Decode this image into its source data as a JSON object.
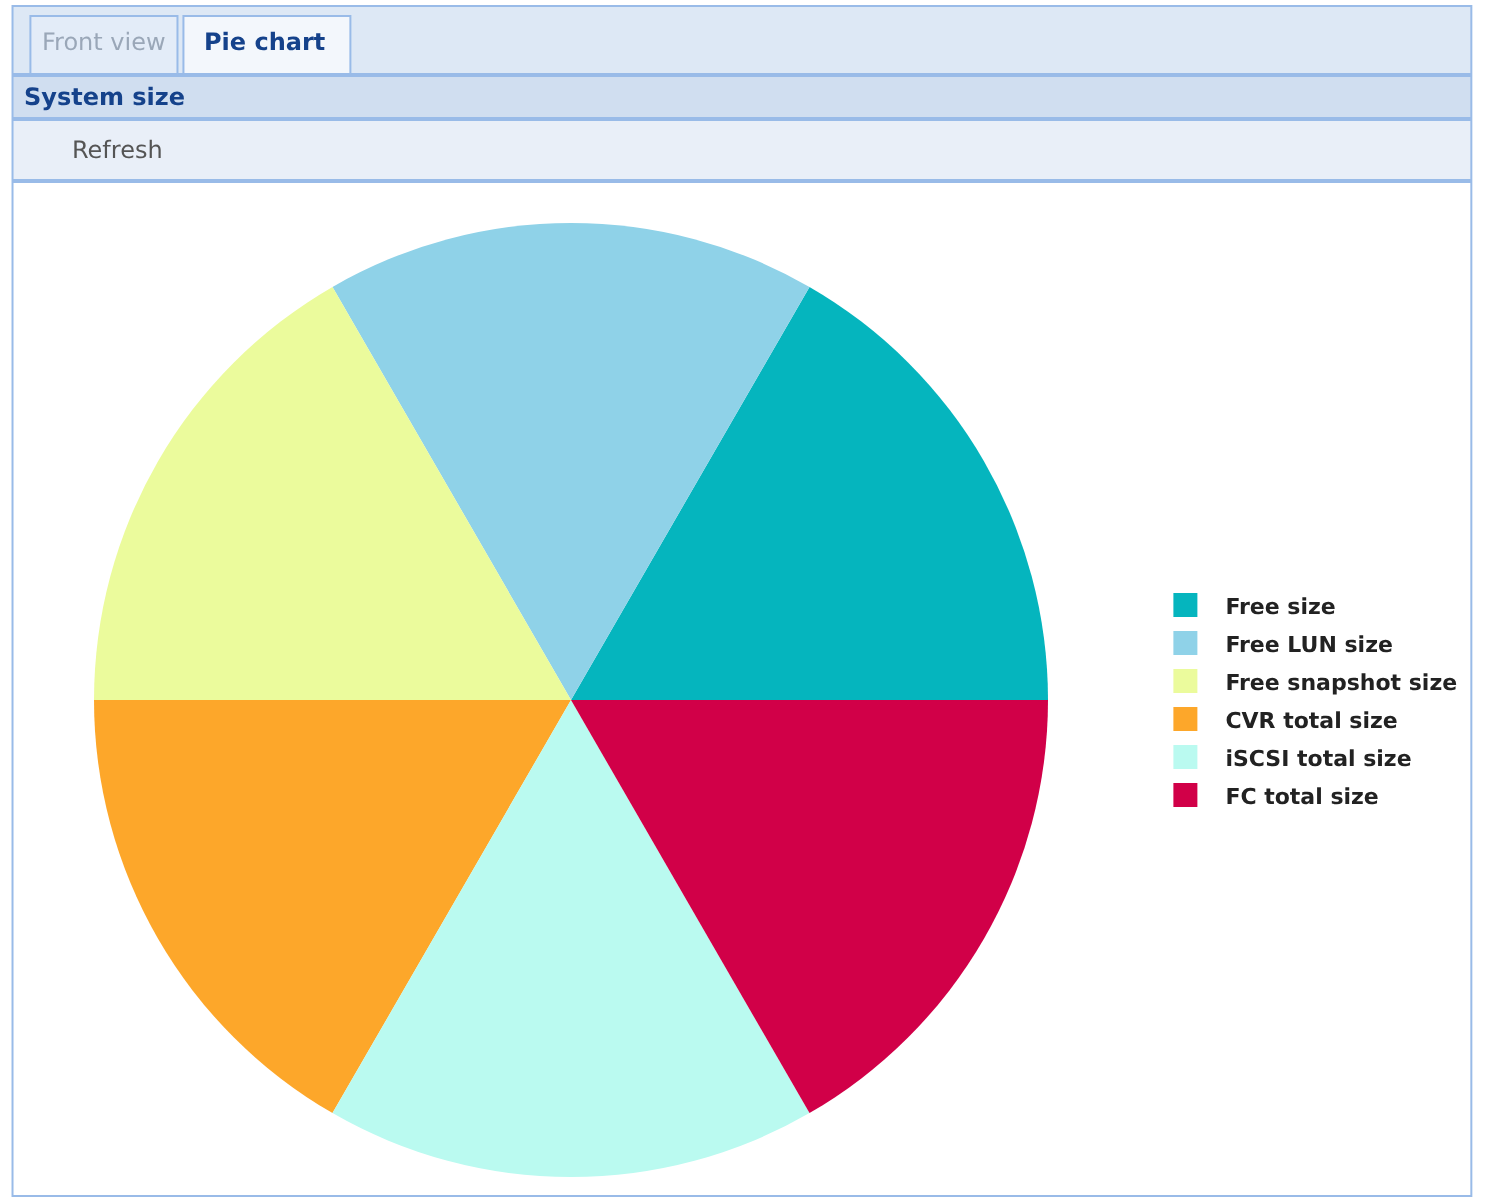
{
  "chart_data": {
    "type": "pie",
    "title": "System size",
    "categories": [
      "Free size",
      "Free LUN size",
      "Free snapshot size",
      "CVR total size",
      "iSCSI total size",
      "FC total size"
    ],
    "values": [
      16.67,
      16.67,
      16.67,
      16.67,
      16.67,
      16.67
    ],
    "colors": [
      "#05b5be",
      "#8fd2e8",
      "#ebfb9c",
      "#fda72a",
      "#bafaf0",
      "#d10048"
    ],
    "legend": "right",
    "annotations": [
      "Front view",
      "Pie chart",
      "Refresh"
    ]
  }
}
